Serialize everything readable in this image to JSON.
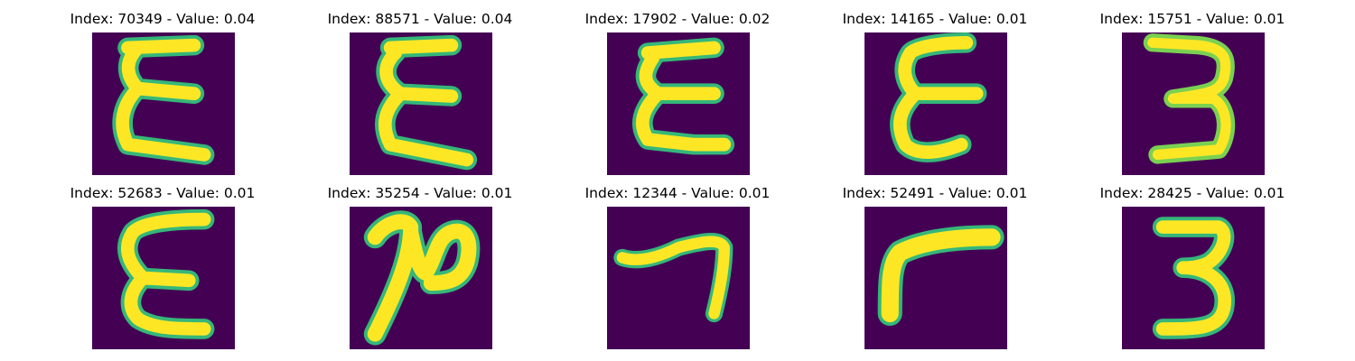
{
  "colors": {
    "background": "#440154",
    "stroke_core": "#fde725",
    "stroke_mid": "#7ad151",
    "stroke_edge": "#35b779"
  },
  "panels": [
    {
      "title": "Index: 70349 - Value: 0.04",
      "glyph": "epsilon-glyph"
    },
    {
      "title": "Index: 88571 - Value: 0.04",
      "glyph": "epsilon-glyph"
    },
    {
      "title": "Index: 17902 - Value: 0.02",
      "glyph": "epsilon-glyph"
    },
    {
      "title": "Index: 14165 - Value: 0.01",
      "glyph": "epsilon-glyph"
    },
    {
      "title": "Index: 15751 - Value: 0.01",
      "glyph": "three-glyph"
    },
    {
      "title": "Index: 52683 - Value: 0.01",
      "glyph": "epsilon-glyph"
    },
    {
      "title": "Index: 35254 - Value: 0.01",
      "glyph": "two-glyph"
    },
    {
      "title": "Index: 12344 - Value: 0.01",
      "glyph": "seven-glyph"
    },
    {
      "title": "Index: 52491 - Value: 0.01",
      "glyph": "seven-glyph"
    },
    {
      "title": "Index: 28425 - Value: 0.01",
      "glyph": "three-glyph"
    }
  ]
}
